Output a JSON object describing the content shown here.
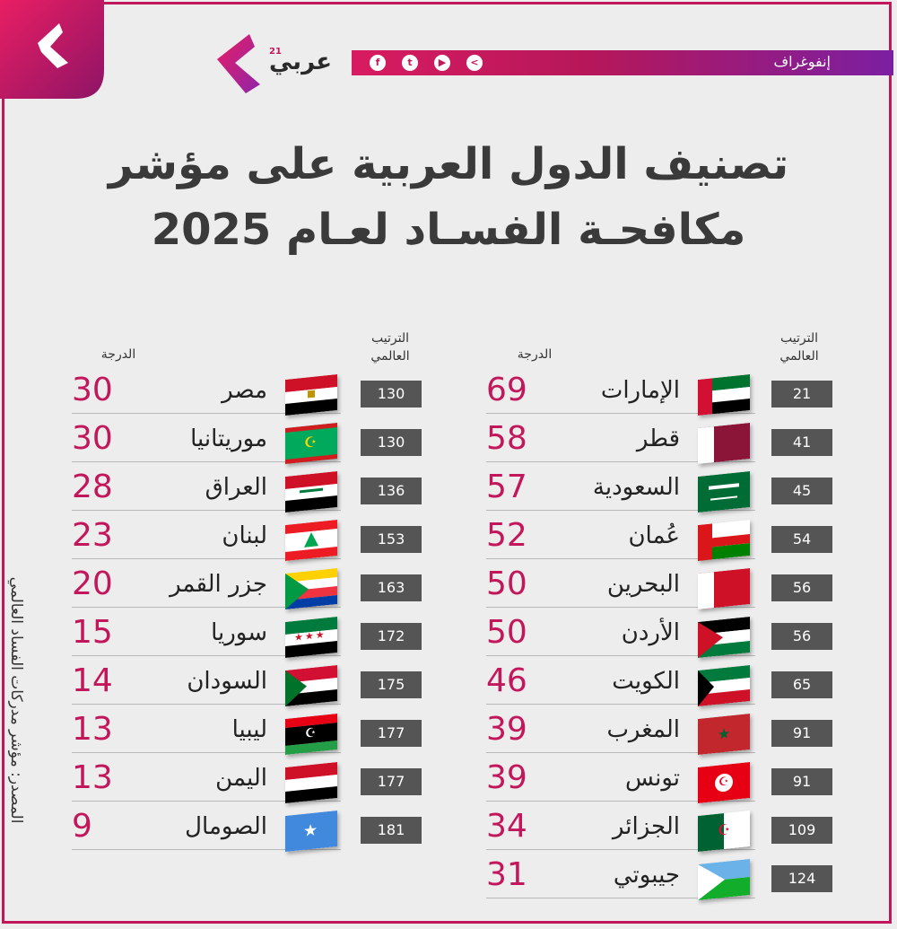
{
  "header": {
    "brand": "عربي",
    "brand_superscript": "21",
    "category": "إنفوغراف",
    "social": [
      "f",
      "t",
      "▶",
      "<"
    ]
  },
  "title": {
    "line1": "تصنيف الدول العربية على مؤشر",
    "line2": "مكافحـة الفسـاد لعـام 2025"
  },
  "columns": {
    "rank_header_line1": "الترتيب",
    "rank_header_line2": "العالمي",
    "score_header": "الدرجة"
  },
  "right_table": [
    {
      "rank": "21",
      "country": "الإمارات",
      "score": "69",
      "flag": "uae-flag"
    },
    {
      "rank": "41",
      "country": "قطر",
      "score": "58",
      "flag": "qatar-flag"
    },
    {
      "rank": "45",
      "country": "السعودية",
      "score": "57",
      "flag": "saudi-flag"
    },
    {
      "rank": "54",
      "country": "عُمان",
      "score": "52",
      "flag": "oman-flag"
    },
    {
      "rank": "56",
      "country": "البحرين",
      "score": "50",
      "flag": "bahrain-flag"
    },
    {
      "rank": "56",
      "country": "الأردن",
      "score": "50",
      "flag": "jordan-flag"
    },
    {
      "rank": "65",
      "country": "الكويت",
      "score": "46",
      "flag": "kuwait-flag"
    },
    {
      "rank": "91",
      "country": "المغرب",
      "score": "39",
      "flag": "morocco-flag"
    },
    {
      "rank": "91",
      "country": "تونس",
      "score": "39",
      "flag": "tunisia-flag"
    },
    {
      "rank": "109",
      "country": "الجزائر",
      "score": "34",
      "flag": "algeria-flag"
    },
    {
      "rank": "124",
      "country": "جيبوتي",
      "score": "31",
      "flag": "djibouti-flag"
    }
  ],
  "left_table": [
    {
      "rank": "130",
      "country": "مصر",
      "score": "30",
      "flag": "egypt-flag"
    },
    {
      "rank": "130",
      "country": "موريتانيا",
      "score": "30",
      "flag": "mauritania-flag"
    },
    {
      "rank": "136",
      "country": "العراق",
      "score": "28",
      "flag": "iraq-flag"
    },
    {
      "rank": "153",
      "country": "لبنان",
      "score": "23",
      "flag": "lebanon-flag"
    },
    {
      "rank": "163",
      "country": "جزر القمر",
      "score": "20",
      "flag": "comoros-flag"
    },
    {
      "rank": "172",
      "country": "سوريا",
      "score": "15",
      "flag": "syria-flag"
    },
    {
      "rank": "175",
      "country": "السودان",
      "score": "14",
      "flag": "sudan-flag"
    },
    {
      "rank": "177",
      "country": "ليبيا",
      "score": "13",
      "flag": "libya-flag"
    },
    {
      "rank": "177",
      "country": "اليمن",
      "score": "13",
      "flag": "yemen-flag"
    },
    {
      "rank": "181",
      "country": "الصومال",
      "score": "9",
      "flag": "somalia-flag"
    }
  ],
  "source": "المصدر: مؤشر مدركات الفساد العالمي",
  "colors": {
    "accent": "#c2185b",
    "rank_box": "#555555",
    "purple": "#7b1fa2"
  }
}
